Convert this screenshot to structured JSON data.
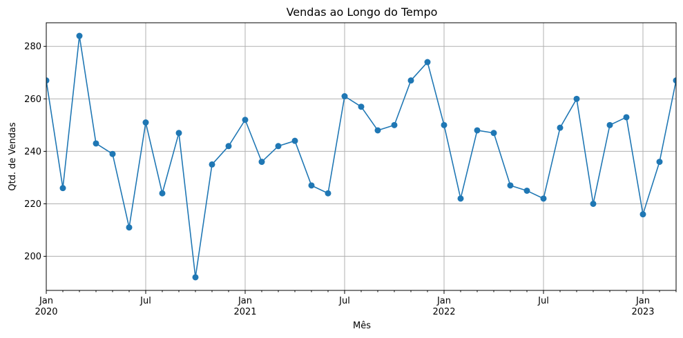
{
  "chart_data": {
    "type": "line",
    "title": "Vendas ao Longo do Tempo",
    "xlabel": "Mês",
    "ylabel": "Qtd. de Vendas",
    "x": [
      "2020-01",
      "2020-02",
      "2020-03",
      "2020-04",
      "2020-05",
      "2020-06",
      "2020-07",
      "2020-08",
      "2020-09",
      "2020-10",
      "2020-11",
      "2020-12",
      "2021-01",
      "2021-02",
      "2021-03",
      "2021-04",
      "2021-05",
      "2021-06",
      "2021-07",
      "2021-08",
      "2021-09",
      "2021-10",
      "2021-11",
      "2021-12",
      "2022-01",
      "2022-02",
      "2022-03",
      "2022-04",
      "2022-05",
      "2022-06",
      "2022-07",
      "2022-08",
      "2022-09",
      "2022-10",
      "2022-11",
      "2022-12",
      "2023-01",
      "2023-02",
      "2023-03"
    ],
    "series": [
      {
        "values": [
          267,
          226,
          284,
          243,
          239,
          211,
          251,
          224,
          247,
          192,
          235,
          242,
          252,
          236,
          242,
          244,
          227,
          224,
          261,
          257,
          248,
          250,
          267,
          274,
          250,
          222,
          248,
          247,
          227,
          225,
          222,
          249,
          260,
          220,
          250,
          253,
          216,
          236,
          267
        ],
        "color": "#1f77b4"
      }
    ],
    "ylim": [
      187,
      289
    ],
    "yticks": [
      200,
      220,
      240,
      260,
      280
    ],
    "xticks": [
      {
        "month_index": 0,
        "label": "Jan",
        "year": "2020"
      },
      {
        "month_index": 6,
        "label": "Jul",
        "year": ""
      },
      {
        "month_index": 12,
        "label": "Jan",
        "year": "2021"
      },
      {
        "month_index": 18,
        "label": "Jul",
        "year": ""
      },
      {
        "month_index": 24,
        "label": "Jan",
        "year": "2022"
      },
      {
        "month_index": 30,
        "label": "Jul",
        "year": ""
      },
      {
        "month_index": 36,
        "label": "Jan",
        "year": "2023"
      }
    ],
    "grid": true,
    "marker": "circle",
    "line_color": "#1f77b4",
    "grid_color": "#b0b0b0"
  }
}
